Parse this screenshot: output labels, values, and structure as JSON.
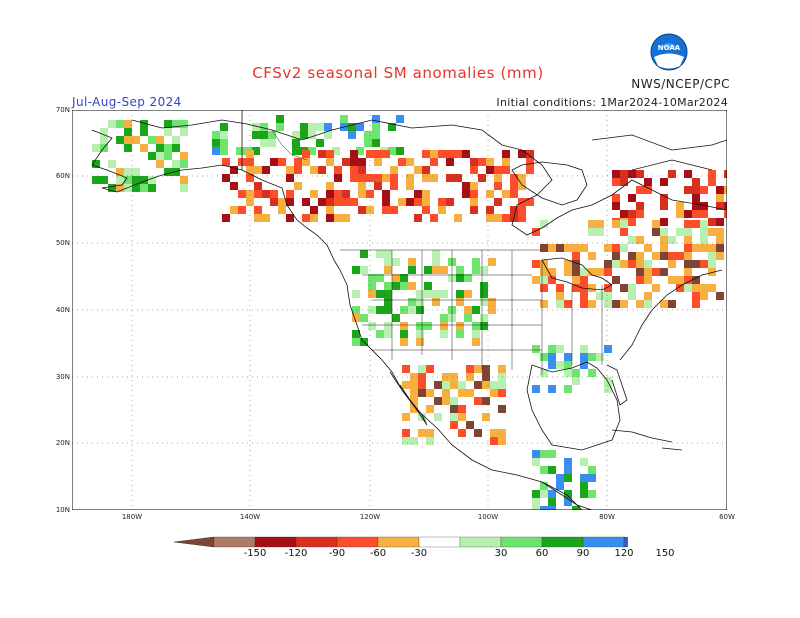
{
  "title": "CFSv2 seasonal SM anomalies (mm)",
  "period": "Jul-Aug-Sep 2024",
  "initial_conditions": "Initial conditions: 1Mar2024-10Mar2024",
  "agency": "NWS/NCEP/CPC",
  "logo_text": "NOAA",
  "lat_labels": [
    "70N",
    "60N",
    "50N",
    "40N",
    "30N",
    "20N",
    "10N"
  ],
  "lon_labels": [
    "180W",
    "140W",
    "120W",
    "100W",
    "80W",
    "60W"
  ],
  "colorbar": {
    "labels": [
      "-150",
      "-120",
      "-90",
      "-60",
      "-30",
      "30",
      "60",
      "90",
      "120",
      "150"
    ],
    "colors": [
      "#7f4433",
      "#b07a6a",
      "#a50f15",
      "#d7301f",
      "#fc4e2a",
      "#f7b040",
      "#ffffff",
      "#b7f0b0",
      "#6ee36e",
      "#1aa51a",
      "#3a8fee",
      "#2f5fd9"
    ]
  }
}
